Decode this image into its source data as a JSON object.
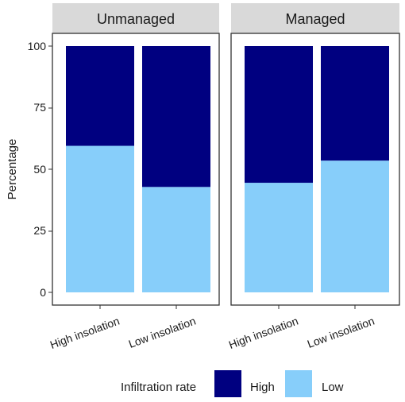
{
  "chart_data": {
    "type": "bar",
    "stacked": true,
    "facets": [
      "Unmanaged",
      "Managed"
    ],
    "categories": [
      "High insolation",
      "Low insolation"
    ],
    "ylabel": "Percentage",
    "xlabel": "",
    "ylim": [
      0,
      100
    ],
    "yticks": [
      "0",
      "25",
      "50",
      "75",
      "100"
    ],
    "legend": {
      "title": "Infiltration rate",
      "position": "bottom",
      "entries": [
        "High",
        "Low"
      ]
    },
    "colors": {
      "High": "#000080",
      "Low": "#87CEFA"
    },
    "panels": [
      {
        "facet": "Unmanaged",
        "series": [
          {
            "name": "Low",
            "values": [
              59.5,
              42.8
            ]
          },
          {
            "name": "High",
            "values": [
              40.5,
              57.2
            ]
          }
        ]
      },
      {
        "facet": "Managed",
        "series": [
          {
            "name": "Low",
            "values": [
              44.5,
              53.5
            ]
          },
          {
            "name": "High",
            "values": [
              55.5,
              46.5
            ]
          }
        ]
      }
    ]
  }
}
